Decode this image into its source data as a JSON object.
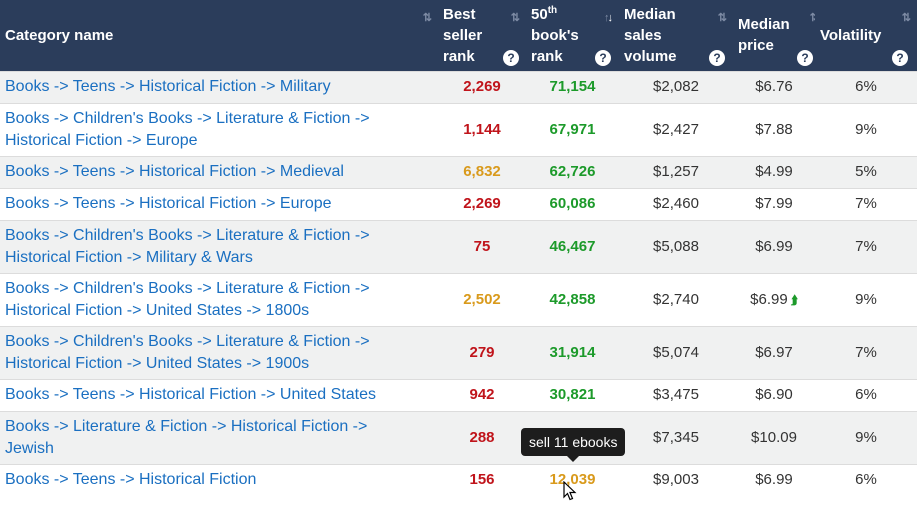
{
  "header": {
    "category": "Category name",
    "best_seller": [
      "Best",
      "seller",
      "rank"
    ],
    "fiftieth": {
      "line1_num": "50",
      "line1_sup": "th",
      "line2": "book's",
      "line3": "rank"
    },
    "sales_volume": [
      "Median",
      "sales",
      "volume"
    ],
    "median_price": [
      "Median",
      "price"
    ],
    "volatility": "Volatility",
    "sort_icon": "⇅",
    "sort_active_icon": "↓",
    "help_icon": "?"
  },
  "rows": [
    {
      "cat1": "Books -> Teens -> Historical Fiction -> Military",
      "cat2": "",
      "bsr": "2,269",
      "bsr_color": "red",
      "r50": "71,154",
      "r50_color": "green",
      "sales": "$2,082",
      "price": "$6.76",
      "vol": "6%"
    },
    {
      "cat1": "Books -> Children's Books -> Literature & Fiction ->",
      "cat2": "Historical Fiction -> Europe",
      "bsr": "1,144",
      "bsr_color": "red",
      "r50": "67,971",
      "r50_color": "green",
      "sales": "$2,427",
      "price": "$7.88",
      "vol": "9%"
    },
    {
      "cat1": "Books -> Teens -> Historical Fiction -> Medieval",
      "cat2": "",
      "bsr": "6,832",
      "bsr_color": "orange",
      "r50": "62,726",
      "r50_color": "green",
      "sales": "$1,257",
      "price": "$4.99",
      "vol": "5%"
    },
    {
      "cat1": "Books -> Teens -> Historical Fiction -> Europe",
      "cat2": "",
      "bsr": "2,269",
      "bsr_color": "red",
      "r50": "60,086",
      "r50_color": "green",
      "sales": "$2,460",
      "price": "$7.99",
      "vol": "7%"
    },
    {
      "cat1": "Books -> Children's Books -> Literature & Fiction ->",
      "cat2": "Historical Fiction -> Military & Wars",
      "bsr": "75",
      "bsr_color": "red",
      "r50": "46,467",
      "r50_color": "green",
      "sales": "$5,088",
      "price": "$6.99",
      "vol": "7%"
    },
    {
      "cat1": "Books -> Children's Books -> Literature & Fiction ->",
      "cat2": "Historical Fiction -> United States -> 1800s",
      "bsr": "2,502",
      "bsr_color": "orange",
      "r50": "42,858",
      "r50_color": "green",
      "sales": "$2,740",
      "price": "$6.99",
      "price_trend_icon": "chevron-double-up-icon",
      "vol": "9%"
    },
    {
      "cat1": "Books -> Children's Books -> Literature & Fiction ->",
      "cat2": "Historical Fiction -> United States -> 1900s",
      "bsr": "279",
      "bsr_color": "red",
      "r50": "31,914",
      "r50_color": "green",
      "sales": "$5,074",
      "price": "$6.97",
      "vol": "7%"
    },
    {
      "cat1": "Books -> Teens -> Historical Fiction -> United States",
      "cat2": "",
      "bsr": "942",
      "bsr_color": "red",
      "r50": "30,821",
      "r50_color": "green",
      "sales": "$3,475",
      "price": "$6.90",
      "vol": "6%"
    },
    {
      "cat1": "Books -> Literature & Fiction -> Historical Fiction ->",
      "cat2": "Jewish",
      "bsr": "288",
      "bsr_color": "red",
      "r50": "",
      "r50_color": "green",
      "sales": "$7,345",
      "price": "$10.09",
      "vol": "9%"
    },
    {
      "cat1": "Books -> Teens -> Historical Fiction",
      "cat2": "",
      "bsr": "156",
      "bsr_color": "red",
      "r50": "12,039",
      "r50_color": "orange",
      "sales": "$9,003",
      "price": "$6.99",
      "vol": "6%"
    }
  ],
  "colors": {
    "header_bg": "#2b3d5b",
    "link": "#1a6fc1",
    "red": "#c0141b",
    "orange": "#d99a1c",
    "green": "#1c9a2a",
    "alt_row": "#f0f1f1"
  },
  "tooltip": {
    "text": "sell 11 ebooks"
  },
  "cursor_icon": "mouse-pointer-icon"
}
